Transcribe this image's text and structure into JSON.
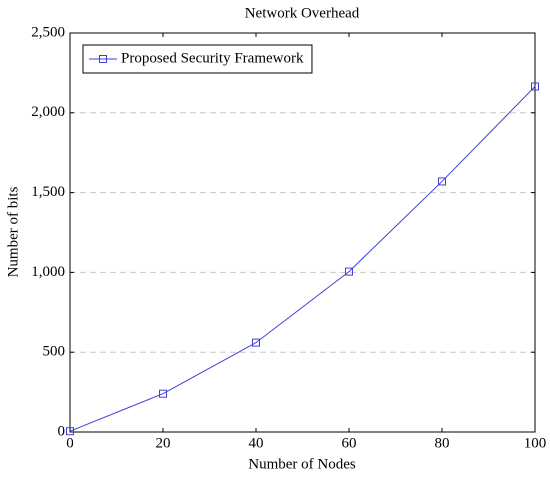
{
  "chart_data": {
    "type": "line",
    "title": "Network Overhead",
    "x_label": "Number of Nodes",
    "y_label": "Number of bits",
    "x": [
      0,
      20,
      40,
      60,
      80,
      100
    ],
    "series": [
      {
        "name": "Proposed Security Framework",
        "color": "#3f3fd8",
        "marker": "square",
        "values": [
          5,
          240,
          560,
          1005,
          1570,
          2165
        ]
      }
    ],
    "xlim": [
      0,
      100
    ],
    "xticks": [
      0,
      20,
      40,
      60,
      80,
      100
    ],
    "ylim": [
      0,
      2500
    ],
    "yticks": [
      0,
      500,
      {
        "value": 1000,
        "label": "1,000"
      },
      {
        "value": 1500,
        "label": "1,500"
      },
      {
        "value": 2000,
        "label": "2,000"
      },
      {
        "value": 2500,
        "label": "2,500"
      }
    ],
    "grid": true,
    "legend_position": "upper left"
  }
}
